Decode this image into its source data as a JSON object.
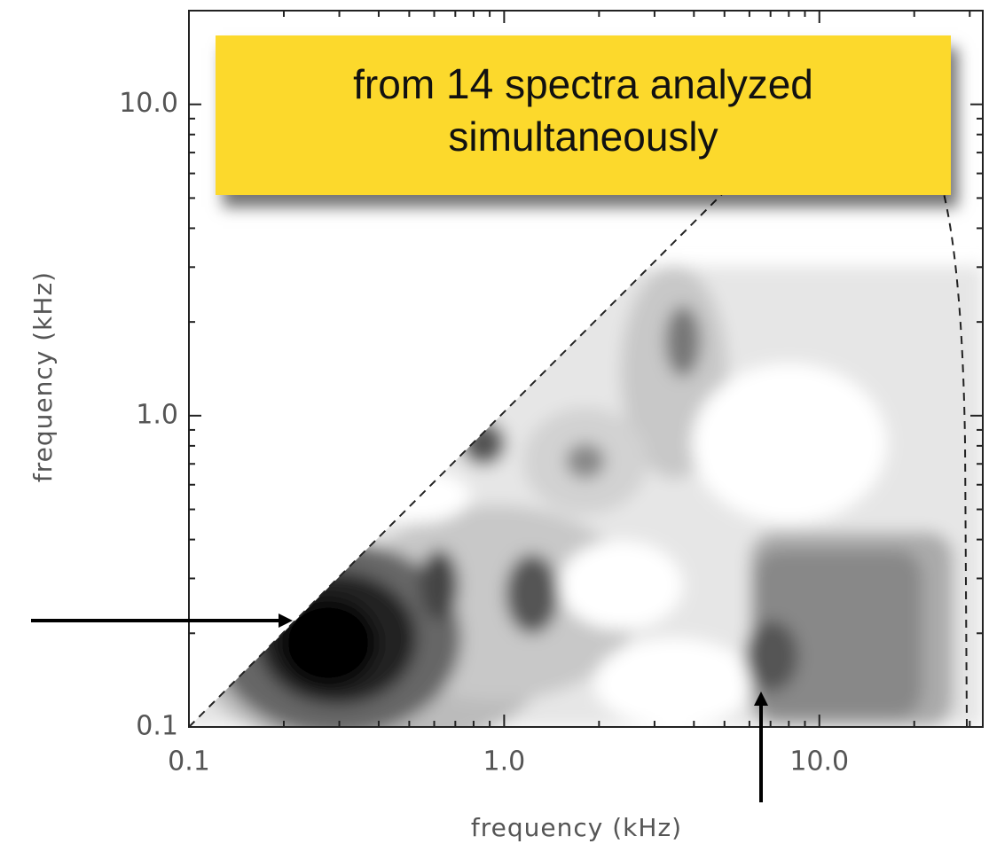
{
  "chart_data": {
    "type": "contour",
    "x_label": "frequency (kHz)",
    "y_label": "frequency (kHz)",
    "xlim": [
      0.1,
      33
    ],
    "ylim": [
      0.1,
      20
    ],
    "log_x": true,
    "log_y": true,
    "xticks": [
      0.1,
      {
        "value": 1,
        "label": "1.0"
      },
      {
        "value": 10,
        "label": "10.0"
      }
    ],
    "yticks": [
      0.1,
      {
        "value": 1,
        "label": "1.0"
      },
      {
        "value": 10,
        "label": "10.0"
      }
    ],
    "annotation": {
      "before": "from",
      "count": "14",
      "after": "spectra analyzed",
      "line2": "simultaneously",
      "color": "#fcd92c"
    }
  }
}
